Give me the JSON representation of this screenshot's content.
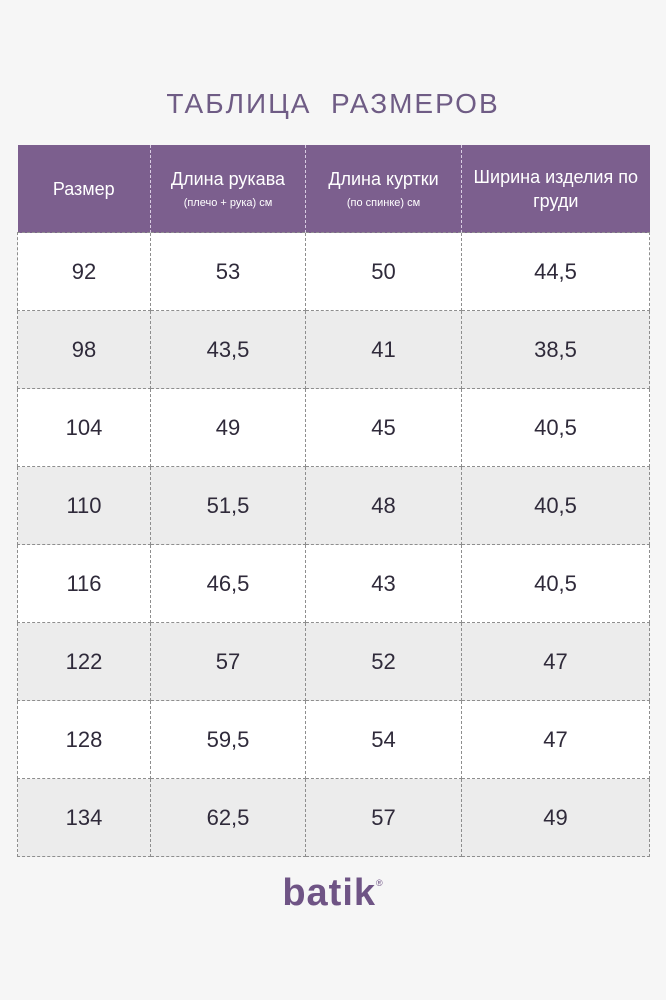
{
  "title": "ТАБЛИЦА  РАЗМЕРОВ",
  "table": {
    "headers": [
      {
        "main": "Размер",
        "sub": ""
      },
      {
        "main": "Длина рукава",
        "sub": "(плечо + рука) см"
      },
      {
        "main": "Длина куртки",
        "sub": "(по спинке) см"
      },
      {
        "main": "Ширина изделия по груди",
        "sub": ""
      }
    ],
    "rows": [
      [
        "92",
        "53",
        "50",
        "44,5"
      ],
      [
        "98",
        "43,5",
        "41",
        "38,5"
      ],
      [
        "104",
        "49",
        "45",
        "40,5"
      ],
      [
        "110",
        "51,5",
        "48",
        "40,5"
      ],
      [
        "116",
        "46,5",
        "43",
        "40,5"
      ],
      [
        "122",
        "57",
        "52",
        "47"
      ],
      [
        "128",
        "59,5",
        "54",
        "47"
      ],
      [
        "134",
        "62,5",
        "57",
        "49"
      ]
    ]
  },
  "brand": {
    "name": "batik",
    "mark": "®"
  },
  "colors": {
    "header_bg": "#7c5f8e",
    "title": "#6f5c85",
    "brand": "#6f5485",
    "row_alt": "#ececec"
  }
}
